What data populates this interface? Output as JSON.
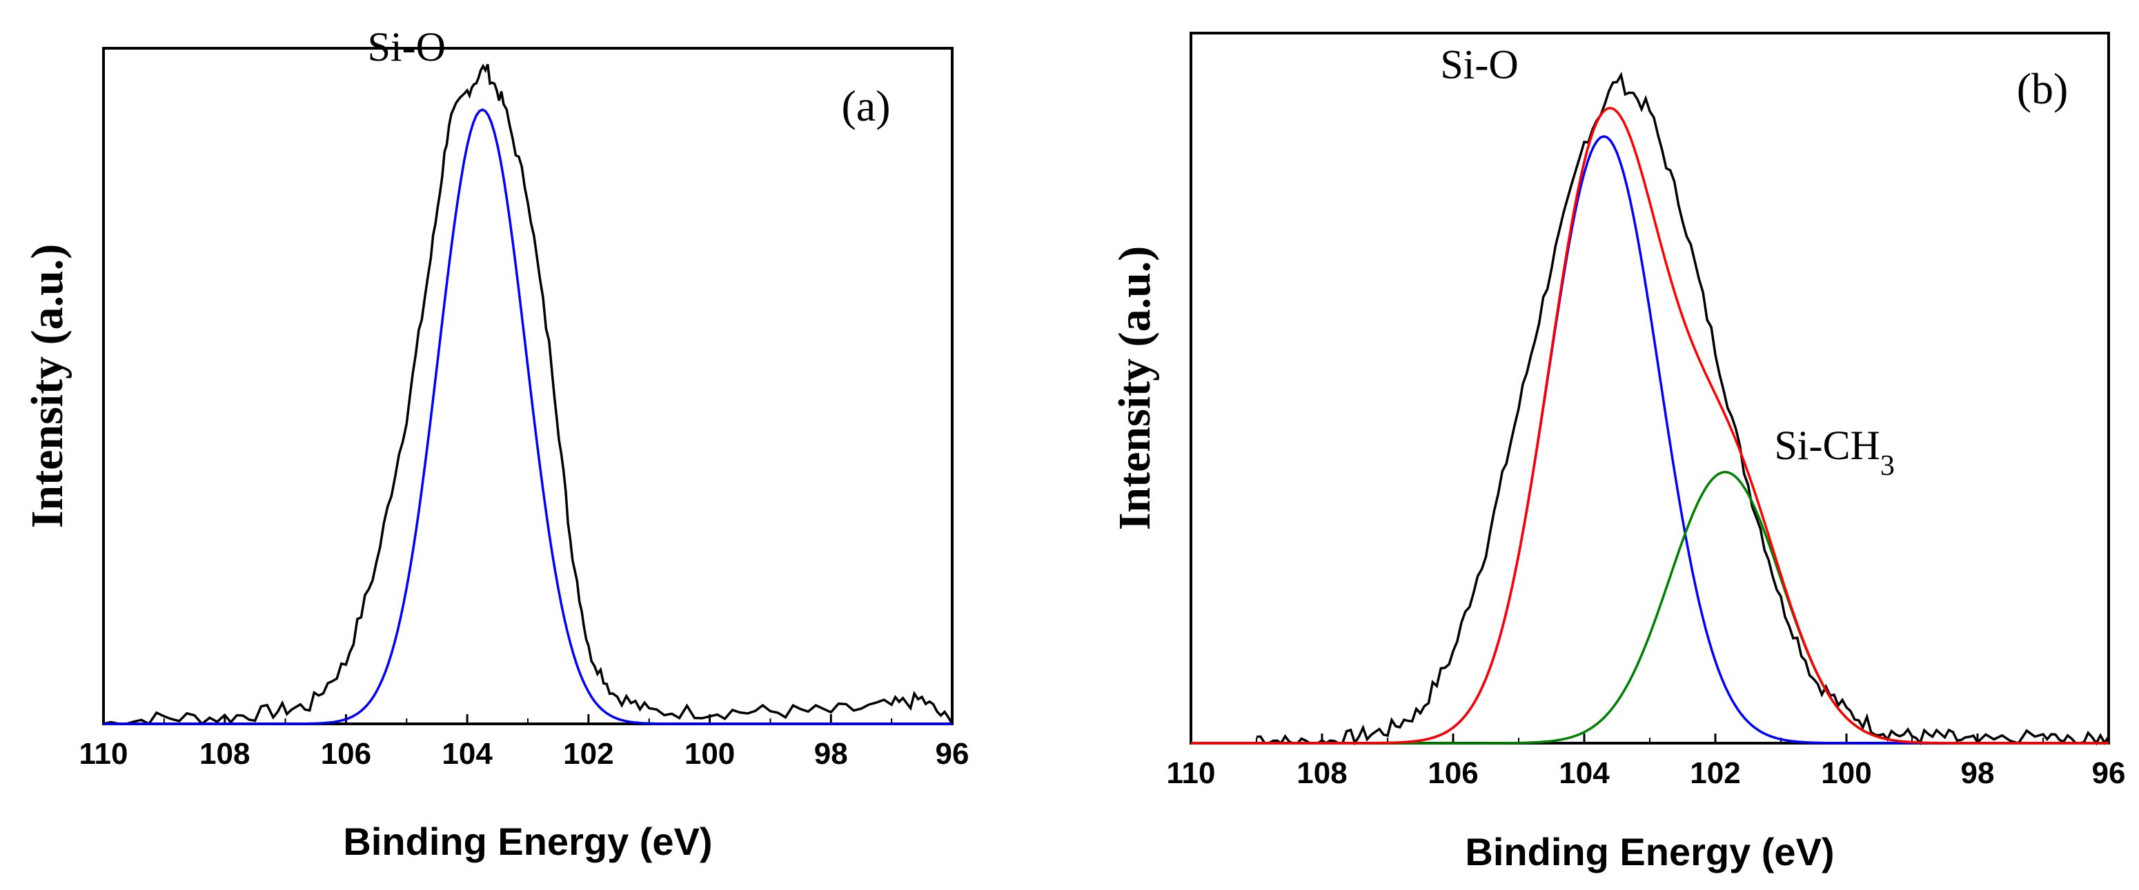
{
  "chart_data": [
    {
      "type": "line",
      "panel_label": "(a)",
      "xlabel": "Binding Energy (eV)",
      "ylabel": "Intensity (a.u.)",
      "xlim": [
        110,
        96
      ],
      "x_reversed": true,
      "ylim": [
        0,
        1.1
      ],
      "xticks": [
        110,
        108,
        106,
        104,
        102,
        100,
        98,
        96
      ],
      "y_ticks_labeled": false,
      "grid": false,
      "annotations": [
        {
          "text": "Si-O",
          "x": 105.0,
          "y": 1.08
        }
      ],
      "series": [
        {
          "color": "#000000",
          "style": "noisy-raw",
          "points": [
            [
              110,
              0.0
            ],
            [
              109.0,
              0.01
            ],
            [
              108.0,
              0.01
            ],
            [
              107.2,
              0.02
            ],
            [
              106.6,
              0.03
            ],
            [
              106.0,
              0.1
            ],
            [
              105.5,
              0.26
            ],
            [
              105.0,
              0.5
            ],
            [
              104.6,
              0.76
            ],
            [
              104.3,
              0.98
            ],
            [
              104.0,
              1.03
            ],
            [
              103.7,
              1.07
            ],
            [
              103.4,
              1.01
            ],
            [
              103.0,
              0.86
            ],
            [
              102.6,
              0.58
            ],
            [
              102.3,
              0.3
            ],
            [
              102.0,
              0.12
            ],
            [
              101.6,
              0.05
            ],
            [
              101.0,
              0.02
            ],
            [
              100.0,
              0.02
            ],
            [
              99.0,
              0.02
            ],
            [
              98.0,
              0.02
            ],
            [
              97.0,
              0.03
            ],
            [
              96.5,
              0.04
            ],
            [
              96.0,
              0.0
            ]
          ]
        },
        {
          "color": "#0000ff",
          "style": "gaussian",
          "center": 103.75,
          "amplitude": 1.0,
          "sigma": 0.72
        }
      ]
    },
    {
      "type": "line",
      "panel_label": "(b)",
      "xlabel": "Binding Energy (eV)",
      "ylabel": "Intensity (a.u.)",
      "xlim": [
        110,
        96
      ],
      "x_reversed": true,
      "ylim": [
        0,
        1.1
      ],
      "xticks": [
        110,
        108,
        106,
        104,
        102,
        100,
        98,
        96
      ],
      "y_ticks_labeled": false,
      "grid": false,
      "annotations": [
        {
          "text": "Si-O",
          "x": 105.6,
          "y": 1.03
        },
        {
          "text": "Si-CH",
          "subscript": "3",
          "x": 101.1,
          "y": 0.44
        }
      ],
      "series": [
        {
          "color": "#000000",
          "style": "noisy-raw",
          "points": [
            [
              109.0,
              0.01
            ],
            [
              108.5,
              0.0
            ],
            [
              108.0,
              0.0
            ],
            [
              107.5,
              0.01
            ],
            [
              107.0,
              0.02
            ],
            [
              106.5,
              0.05
            ],
            [
              106.0,
              0.14
            ],
            [
              105.5,
              0.3
            ],
            [
              105.0,
              0.52
            ],
            [
              104.5,
              0.74
            ],
            [
              104.0,
              0.93
            ],
            [
              103.5,
              1.03
            ],
            [
              103.0,
              0.98
            ],
            [
              102.5,
              0.82
            ],
            [
              102.0,
              0.61
            ],
            [
              101.5,
              0.4
            ],
            [
              101.0,
              0.22
            ],
            [
              100.5,
              0.1
            ],
            [
              100.0,
              0.05
            ],
            [
              99.5,
              0.02
            ],
            [
              99.0,
              0.01
            ],
            [
              98.5,
              0.01
            ],
            [
              98.0,
              0.0
            ],
            [
              97.0,
              0.01
            ],
            [
              96.5,
              0.0
            ],
            [
              96.0,
              0.01
            ]
          ]
        },
        {
          "color": "#0000ff",
          "style": "gaussian",
          "center": 103.7,
          "amplitude": 0.94,
          "sigma": 0.85
        },
        {
          "color": "#008000",
          "style": "gaussian",
          "center": 101.85,
          "amplitude": 0.42,
          "sigma": 0.85
        },
        {
          "color": "#ff0000",
          "style": "sum"
        }
      ]
    }
  ]
}
